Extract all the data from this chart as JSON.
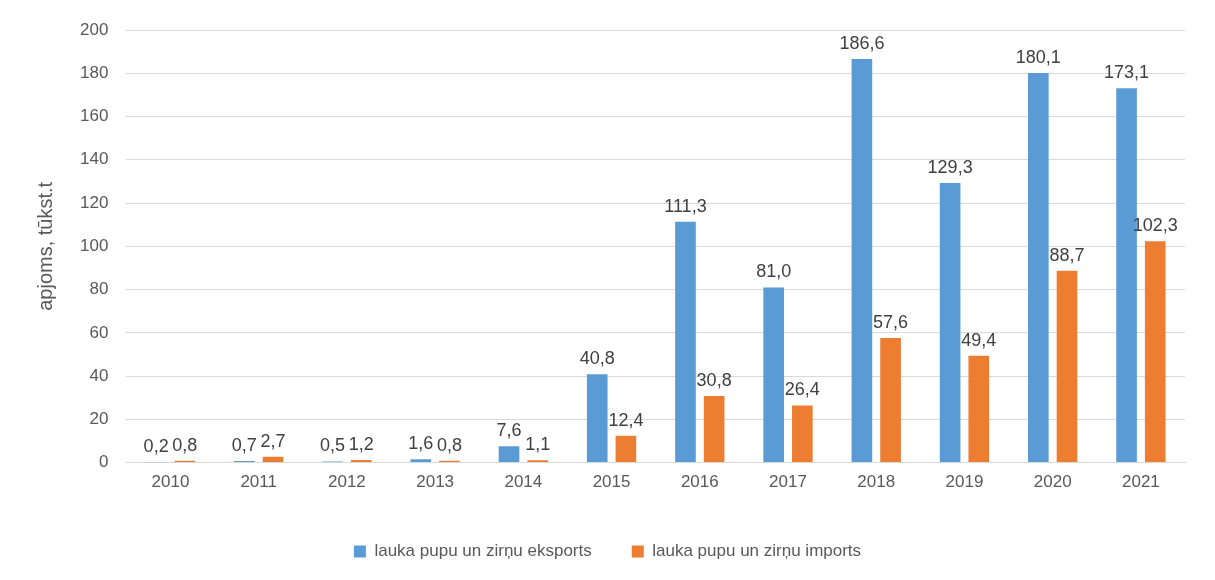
{
  "chart_data": {
    "type": "bar",
    "ylabel": "apjoms, tūkst.t",
    "categories": [
      "2010",
      "2011",
      "2012",
      "2013",
      "2014",
      "2015",
      "2016",
      "2017",
      "2018",
      "2019",
      "2020",
      "2021"
    ],
    "series": [
      {
        "name": "lauka pupu un zirņu eksports",
        "color": "#5b9bd5",
        "values": [
          0.2,
          0.7,
          0.5,
          1.6,
          7.6,
          40.8,
          111.3,
          81.0,
          186.6,
          129.3,
          180.1,
          173.1
        ],
        "value_labels": [
          "0,2",
          "0,7",
          "0,5",
          "1,6",
          "7,6",
          "40,8",
          "111,3",
          "81,0",
          "186,6",
          "129,3",
          "180,1",
          "173,1"
        ]
      },
      {
        "name": "lauka pupu un zirņu imports",
        "color": "#ed7d31",
        "values": [
          0.8,
          2.7,
          1.2,
          0.8,
          1.1,
          12.4,
          30.8,
          26.4,
          57.6,
          49.4,
          88.7,
          102.3
        ],
        "value_labels": [
          "0,8",
          "2,7",
          "1,2",
          "0,8",
          "1,1",
          "12,4",
          "30,8",
          "26,4",
          "57,6",
          "49,4",
          "88,7",
          "102,3"
        ]
      }
    ],
    "ylim": [
      0,
      200
    ],
    "yticks": [
      0,
      20,
      40,
      60,
      80,
      100,
      120,
      140,
      160,
      180,
      200
    ],
    "grid": "y",
    "legend": "bottom"
  }
}
